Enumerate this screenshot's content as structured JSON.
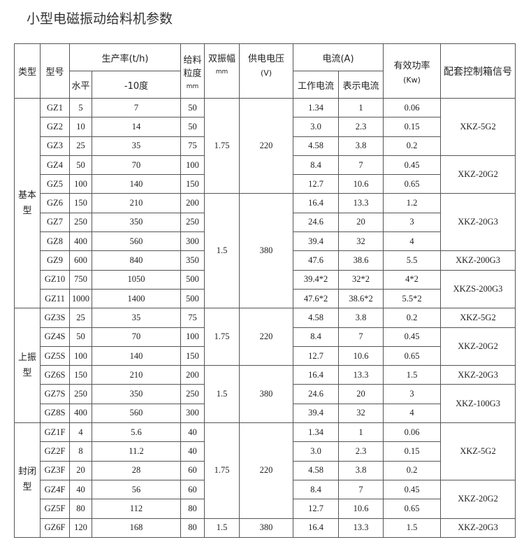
{
  "title": "小型电磁振动给料机参数",
  "headers": {
    "type": "类型",
    "model": "型号",
    "capacity": "生产率(t/h)",
    "horizontal": "水平",
    "minus10": "-10度",
    "granularity": "给料粒度",
    "granularity_unit": "mm",
    "amplitude": "双振幅",
    "amplitude_unit": "mm",
    "voltage": "供电电压",
    "voltage_unit": "(V)",
    "current": "电流(A)",
    "work_current": "工作电流",
    "display_current": "表示电流",
    "power": "有效功率",
    "power_unit": "(Kw)",
    "control": "配套控制箱信号"
  },
  "groups": [
    {
      "type": "基本型",
      "rows": [
        [
          "GZ1",
          "5",
          "7",
          "50",
          "1.75",
          "220",
          "1.34",
          "1",
          "0.06",
          "XKZ-5G2"
        ],
        [
          "GZ2",
          "10",
          "14",
          "50",
          "1.75",
          "220",
          "3.0",
          "2.3",
          "0.15",
          "XKZ-5G2"
        ],
        [
          "GZ3",
          "25",
          "35",
          "75",
          "1.75",
          "220",
          "4.58",
          "3.8",
          "0.2",
          "XKZ-5G2"
        ],
        [
          "GZ4",
          "50",
          "70",
          "100",
          "1.75",
          "220",
          "8.4",
          "7",
          "0.45",
          "XKZ-20G2"
        ],
        [
          "GZ5",
          "100",
          "140",
          "150",
          "1.75",
          "220",
          "12.7",
          "10.6",
          "0.65",
          "XKZ-20G2"
        ],
        [
          "GZ6",
          "150",
          "210",
          "200",
          "1.5",
          "380",
          "16.4",
          "13.3",
          "1.2",
          "XKZ-20G3"
        ],
        [
          "GZ7",
          "250",
          "350",
          "250",
          "1.5",
          "380",
          "24.6",
          "20",
          "3",
          "XKZ-20G3"
        ],
        [
          "GZ8",
          "400",
          "560",
          "300",
          "1.5",
          "380",
          "39.4",
          "32",
          "4",
          "XKZ-20G3"
        ],
        [
          "GZ9",
          "600",
          "840",
          "350",
          "1.5",
          "380",
          "47.6",
          "38.6",
          "5.5",
          "XKZ-200G3"
        ],
        [
          "GZ10",
          "750",
          "1050",
          "500",
          "1.5",
          "380",
          "39.4*2",
          "32*2",
          "4*2",
          "XKZS-200G3"
        ],
        [
          "GZ11",
          "1000",
          "1400",
          "500",
          "1.5",
          "380",
          "47.6*2",
          "38.6*2",
          "5.5*2",
          "XKZS-200G3"
        ]
      ]
    },
    {
      "type": "上振型",
      "rows": [
        [
          "GZ3S",
          "25",
          "35",
          "75",
          "1.75",
          "220",
          "4.58",
          "3.8",
          "0.2",
          "XKZ-5G2"
        ],
        [
          "GZ4S",
          "50",
          "70",
          "100",
          "1.75",
          "220",
          "8.4",
          "7",
          "0.45",
          "XKZ-20G2"
        ],
        [
          "GZ5S",
          "100",
          "140",
          "150",
          "1.75",
          "220",
          "12.7",
          "10.6",
          "0.65",
          "XKZ-20G2"
        ],
        [
          "GZ6S",
          "150",
          "210",
          "200",
          "1.5",
          "380",
          "16.4",
          "13.3",
          "1.5",
          "XKZ-20G3"
        ],
        [
          "GZ7S",
          "250",
          "350",
          "250",
          "1.5",
          "380",
          "24.6",
          "20",
          "3",
          "XKZ-100G3"
        ],
        [
          "GZ8S",
          "400",
          "560",
          "300",
          "1.5",
          "380",
          "39.4",
          "32",
          "4",
          "XKZ-100G3"
        ]
      ]
    },
    {
      "type": "封闭型",
      "rows": [
        [
          "GZ1F",
          "4",
          "5.6",
          "40",
          "1.75",
          "220",
          "1.34",
          "1",
          "0.06",
          "XKZ-5G2"
        ],
        [
          "GZ2F",
          "8",
          "11.2",
          "40",
          "1.75",
          "220",
          "3.0",
          "2.3",
          "0.15",
          "XKZ-5G2"
        ],
        [
          "GZ3F",
          "20",
          "28",
          "60",
          "1.75",
          "220",
          "4.58",
          "3.8",
          "0.2",
          "XKZ-5G2"
        ],
        [
          "GZ4F",
          "40",
          "56",
          "60",
          "1.75",
          "220",
          "8.4",
          "7",
          "0.45",
          "XKZ-20G2"
        ],
        [
          "GZ5F",
          "80",
          "112",
          "80",
          "1.75",
          "220",
          "12.7",
          "10.6",
          "0.65",
          "XKZ-20G2"
        ],
        [
          "GZ6F",
          "120",
          "168",
          "80",
          "1.5",
          "380",
          "16.4",
          "13.3",
          "1.5",
          "XKZ-20G3"
        ]
      ]
    }
  ]
}
